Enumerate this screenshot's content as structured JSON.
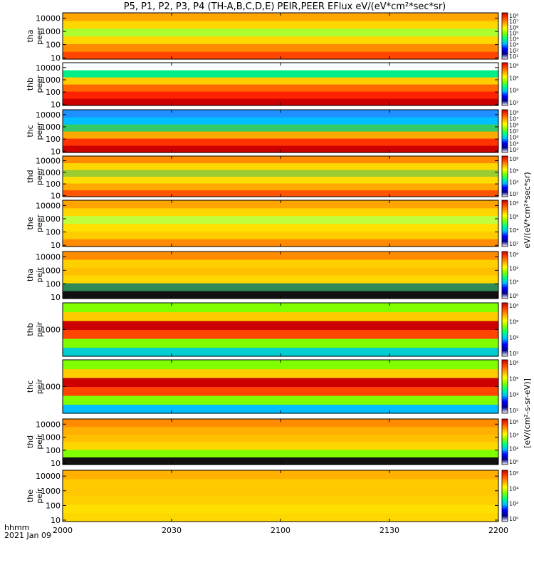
{
  "chart_data": {
    "type": "heatmap",
    "title": "P5, P1, P2, P3, P4 (TH-A,B,C,D,E) PEIR,PEER EFlux eV/(eV*cm²*sec*sr)",
    "xlabel": "hhmm",
    "date_label": "2021 Jan 09",
    "x_ticks": [
      "2000",
      "2030",
      "2100",
      "2130",
      "2200"
    ],
    "x_range": [
      "2000",
      "2200"
    ],
    "colorbar_label_peer": "eV/(eV*cm²*sec*sr)",
    "colorbar_label_peir": "[eV/(cm²-s-sr-eV)]",
    "colorscale": [
      "#ffffff",
      "#00008b",
      "#0000ff",
      "#00bfff",
      "#00ff7f",
      "#7fff00",
      "#ffff00",
      "#ffa500",
      "#ff4500",
      "#cc0000"
    ],
    "panels": [
      {
        "id": "tha-peer",
        "probe": "tha",
        "species": "peer",
        "y_ticks": [
          "10",
          "100",
          "1000",
          "10000"
        ],
        "ylim": [
          8,
          25000
        ],
        "cbar_ticks": [
          "10¹",
          "10²",
          "10³",
          "10⁴",
          "10⁵",
          "10⁶",
          "10⁷",
          "10⁸"
        ]
      },
      {
        "id": "thb-peer",
        "probe": "thb",
        "species": "peer",
        "y_ticks": [
          "10",
          "100",
          "1000",
          "10000"
        ],
        "ylim": [
          8,
          25000
        ],
        "cbar_ticks": [
          "10²",
          "10⁴",
          "10⁶",
          "10⁸"
        ]
      },
      {
        "id": "thc-peer",
        "probe": "thc",
        "species": "peer",
        "y_ticks": [
          "10",
          "100",
          "1000",
          "10000"
        ],
        "ylim": [
          8,
          25000
        ],
        "cbar_ticks": [
          "10²",
          "10³",
          "10⁴",
          "10⁵",
          "10⁶",
          "10⁷",
          "10⁸"
        ]
      },
      {
        "id": "thd-peer",
        "probe": "thd",
        "species": "peer",
        "y_ticks": [
          "10",
          "100",
          "1000",
          "10000"
        ],
        "ylim": [
          8,
          25000
        ],
        "cbar_ticks": [
          "10²",
          "10⁴",
          "10⁶",
          "10⁸"
        ]
      },
      {
        "id": "the-peer",
        "probe": "the",
        "species": "peer",
        "y_ticks": [
          "10",
          "100",
          "1000",
          "10000"
        ],
        "ylim": [
          8,
          25000
        ],
        "cbar_ticks": [
          "10²",
          "10⁴",
          "10⁶",
          "10⁸"
        ]
      },
      {
        "id": "tha-peir",
        "probe": "tha",
        "species": "peir",
        "y_ticks": [
          "10",
          "100",
          "1000",
          "10000"
        ],
        "ylim": [
          8,
          25000
        ],
        "cbar_ticks": [
          "10⁰",
          "10²",
          "10⁴",
          "10⁶"
        ]
      },
      {
        "id": "thb-peir",
        "probe": "thb",
        "species": "peir",
        "y_ticks": [
          "1000"
        ],
        "ylim": [
          500,
          2000
        ],
        "cbar_ticks": [
          "10²",
          "10⁴",
          "10⁶",
          "10⁸"
        ]
      },
      {
        "id": "thc-peir",
        "probe": "thc",
        "species": "peir",
        "y_ticks": [
          "1000"
        ],
        "ylim": [
          500,
          2000
        ],
        "cbar_ticks": [
          "10²",
          "10⁴",
          "10⁶",
          "10⁸"
        ]
      },
      {
        "id": "thd-peir",
        "probe": "thd",
        "species": "peir",
        "y_ticks": [
          "10",
          "100",
          "1000",
          "10000"
        ],
        "ylim": [
          8,
          25000
        ],
        "cbar_ticks": [
          "10⁰",
          "10²",
          "10⁴",
          "10⁶"
        ]
      },
      {
        "id": "the-peir",
        "probe": "the",
        "species": "peir",
        "y_ticks": [
          "10",
          "100",
          "1000",
          "10000"
        ],
        "ylim": [
          8,
          25000
        ],
        "cbar_ticks": [
          "10⁰",
          "10²",
          "10⁴",
          "10⁶"
        ]
      }
    ]
  }
}
